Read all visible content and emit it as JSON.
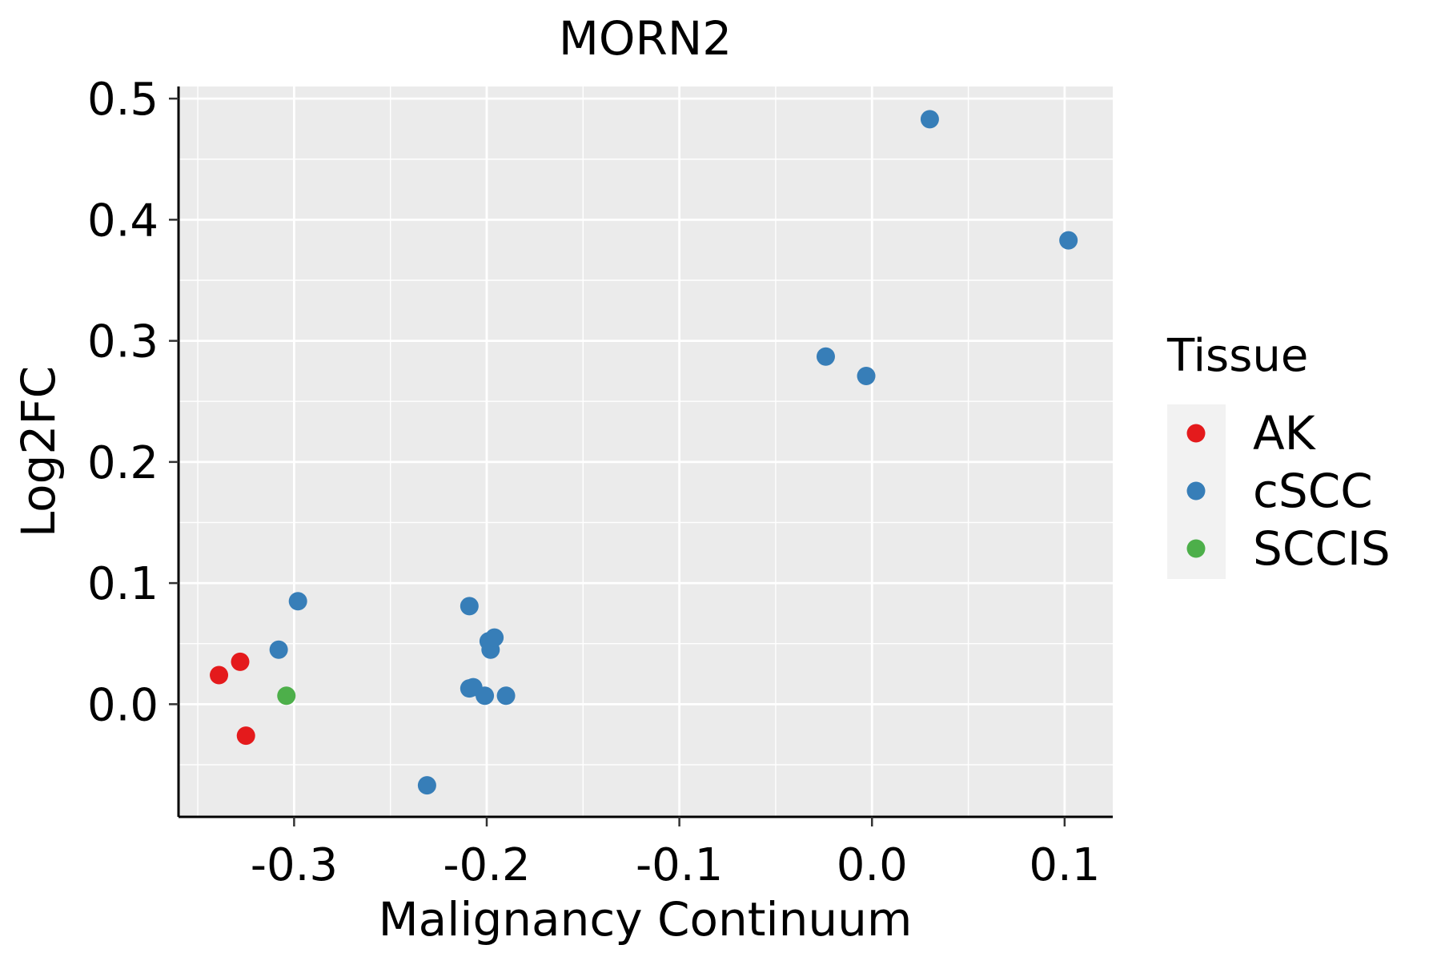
{
  "chart_data": {
    "type": "scatter",
    "title": "MORN2",
    "xlabel": "Malignancy Continuum",
    "ylabel": "Log2FC",
    "xlim": [
      -0.36,
      0.125
    ],
    "ylim": [
      -0.093,
      0.51
    ],
    "x_ticks": [
      -0.3,
      -0.2,
      -0.1,
      0.0,
      0.1
    ],
    "x_tick_labels": [
      "-0.3",
      "-0.2",
      "-0.1",
      "0.0",
      "0.1"
    ],
    "y_ticks": [
      0.0,
      0.1,
      0.2,
      0.3,
      0.4,
      0.5
    ],
    "y_tick_labels": [
      "0.0",
      "0.1",
      "0.2",
      "0.3",
      "0.4",
      "0.5"
    ],
    "grid": true,
    "legend": {
      "title": "Tissue",
      "placement": "right",
      "entries": [
        {
          "label": "AK",
          "color": "#E41A1C"
        },
        {
          "label": "cSCC",
          "color": "#377EB8"
        },
        {
          "label": "SCCIS",
          "color": "#4DAF4A"
        }
      ]
    },
    "series": [
      {
        "name": "AK",
        "color": "#E41A1C",
        "points": [
          {
            "x": -0.339,
            "y": 0.024
          },
          {
            "x": -0.328,
            "y": 0.035
          },
          {
            "x": -0.325,
            "y": -0.026
          }
        ]
      },
      {
        "name": "cSCC",
        "color": "#377EB8",
        "points": [
          {
            "x": -0.308,
            "y": 0.045
          },
          {
            "x": -0.298,
            "y": 0.085
          },
          {
            "x": -0.231,
            "y": -0.067
          },
          {
            "x": -0.209,
            "y": 0.081
          },
          {
            "x": -0.209,
            "y": 0.013
          },
          {
            "x": -0.207,
            "y": 0.014
          },
          {
            "x": -0.201,
            "y": 0.007
          },
          {
            "x": -0.199,
            "y": 0.052
          },
          {
            "x": -0.198,
            "y": 0.045
          },
          {
            "x": -0.196,
            "y": 0.055
          },
          {
            "x": -0.19,
            "y": 0.007
          },
          {
            "x": -0.024,
            "y": 0.287
          },
          {
            "x": -0.003,
            "y": 0.271
          },
          {
            "x": 0.03,
            "y": 0.483
          },
          {
            "x": 0.102,
            "y": 0.383
          }
        ]
      },
      {
        "name": "SCCIS",
        "color": "#4DAF4A",
        "points": [
          {
            "x": -0.304,
            "y": 0.007
          }
        ]
      }
    ]
  }
}
